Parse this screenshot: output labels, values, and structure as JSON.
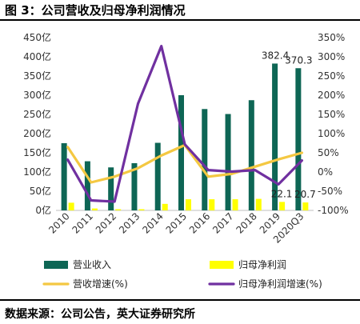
{
  "header": {
    "title": "图 3：公司营收及归母净利润情况"
  },
  "footer": {
    "source": "数据来源：公司公告，英大证券研究所"
  },
  "chart_data": {
    "type": "bar",
    "categories": [
      "2010",
      "2011",
      "2012",
      "2013",
      "2014",
      "2015",
      "2016",
      "2017",
      "2018",
      "2019",
      "2020Q3"
    ],
    "series": [
      {
        "name": "营业收入",
        "type": "bar",
        "axis": "left",
        "color": "#0e6655",
        "values": [
          175,
          128,
          112,
          123,
          176,
          300,
          264,
          251,
          287,
          382.4,
          370.3
        ]
      },
      {
        "name": "归母净利润",
        "type": "bar",
        "axis": "left",
        "color": "#ffff00",
        "values": [
          20,
          5,
          3,
          3,
          17,
          29,
          29,
          29,
          30,
          22.1,
          20.7
        ]
      },
      {
        "name": "营收增速(%)",
        "type": "line",
        "axis": "right",
        "color": "#f4c842",
        "values": [
          65,
          -27,
          -12,
          10,
          43,
          70,
          -12,
          -5,
          14,
          33,
          50
        ]
      },
      {
        "name": "归母净利润增速(%)",
        "type": "line",
        "axis": "right",
        "color": "#7030a0",
        "values": [
          32,
          -74,
          -77,
          178,
          328,
          72,
          5,
          1,
          5,
          -32,
          30
        ]
      }
    ],
    "left_axis": {
      "min": 0,
      "max": 450,
      "step": 50,
      "tick_labels": [
        "0亿",
        "50亿",
        "100亿",
        "150亿",
        "200亿",
        "250亿",
        "300亿",
        "350亿",
        "400亿",
        "450亿"
      ]
    },
    "right_axis": {
      "min": -100,
      "max": 350,
      "step": 50,
      "tick_labels": [
        "-100%",
        "-50%",
        "0%",
        "50%",
        "100%",
        "150%",
        "200%",
        "250%",
        "300%",
        "350%"
      ]
    },
    "data_labels": [
      {
        "series": 0,
        "index": 9,
        "text": "382.4"
      },
      {
        "series": 0,
        "index": 10,
        "text": "370.3"
      },
      {
        "series": 1,
        "index": 9,
        "text": "22.1"
      },
      {
        "series": 1,
        "index": 10,
        "text": "20.7"
      }
    ],
    "legend": {
      "placement": "bottom",
      "columns": 2
    },
    "grid": false
  }
}
